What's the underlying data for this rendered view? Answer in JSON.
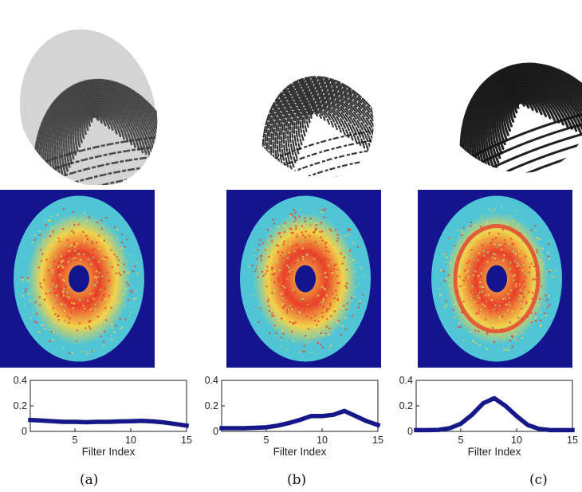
{
  "panels": [
    {
      "id": "a",
      "caption": "(a)"
    },
    {
      "id": "b",
      "caption": "(b)"
    },
    {
      "id": "c",
      "caption": "(c)"
    }
  ],
  "colors": {
    "line": "#16188a",
    "spectrum_background": "#14148f",
    "spectrum_outer": "#4fc5d6",
    "spectrum_mid": "#f2d34a",
    "spectrum_hot": "#e8402b",
    "fingerprint_ink": "#1c1c1c"
  },
  "chart_data": [
    {
      "type": "line",
      "xlabel": "Filter Index",
      "ylabel": "",
      "xlim": [
        1,
        15
      ],
      "ylim": [
        0,
        0.4
      ],
      "xticks": [
        5,
        10,
        15
      ],
      "yticks": [
        0,
        0.2,
        0.4
      ],
      "tick_labels": {
        "x": [
          "5",
          "10",
          "15"
        ],
        "y": [
          "0",
          "0.2",
          "0.4"
        ]
      },
      "x": [
        1,
        2,
        3,
        4,
        5,
        6,
        7,
        8,
        9,
        10,
        11,
        12,
        13,
        14,
        15
      ],
      "series": [
        {
          "values": [
            0.09,
            0.085,
            0.08,
            0.075,
            0.075,
            0.072,
            0.075,
            0.075,
            0.078,
            0.08,
            0.083,
            0.078,
            0.07,
            0.058,
            0.045
          ]
        }
      ]
    },
    {
      "type": "line",
      "xlabel": "Filter Index",
      "ylabel": "",
      "xlim": [
        1,
        15
      ],
      "ylim": [
        0,
        0.4
      ],
      "xticks": [
        5,
        10,
        15
      ],
      "yticks": [
        0,
        0.2,
        0.4
      ],
      "tick_labels": {
        "x": [
          "5",
          "10",
          "15"
        ],
        "y": [
          "0",
          "0.2",
          "0.4"
        ]
      },
      "x": [
        1,
        2,
        3,
        4,
        5,
        6,
        7,
        8,
        9,
        10,
        11,
        12,
        13,
        14,
        15
      ],
      "series": [
        {
          "values": [
            0.025,
            0.025,
            0.025,
            0.028,
            0.032,
            0.045,
            0.065,
            0.09,
            0.12,
            0.12,
            0.13,
            0.16,
            0.12,
            0.08,
            0.05
          ]
        }
      ]
    },
    {
      "type": "line",
      "xlabel": "Filter Index",
      "ylabel": "",
      "xlim": [
        1,
        15
      ],
      "ylim": [
        0,
        0.4
      ],
      "xticks": [
        5,
        10,
        15
      ],
      "yticks": [
        0,
        0.2,
        0.4
      ],
      "tick_labels": {
        "x": [
          "5",
          "10",
          "15"
        ],
        "y": [
          "0",
          "0.2",
          "0.4"
        ]
      },
      "x": [
        1,
        2,
        3,
        4,
        5,
        6,
        7,
        8,
        9,
        10,
        11,
        12,
        13,
        14,
        15
      ],
      "series": [
        {
          "values": [
            0.01,
            0.01,
            0.012,
            0.025,
            0.06,
            0.13,
            0.22,
            0.26,
            0.2,
            0.12,
            0.05,
            0.02,
            0.01,
            0.01,
            0.01
          ]
        }
      ]
    }
  ]
}
